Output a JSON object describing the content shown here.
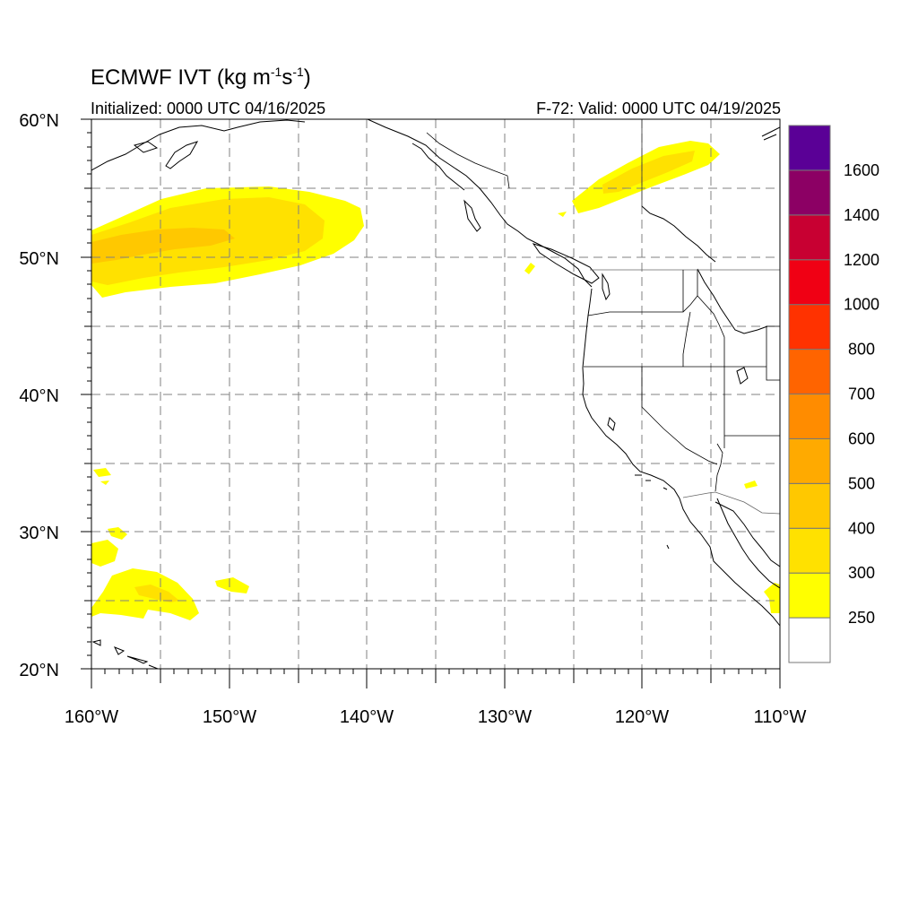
{
  "title": {
    "prefix": "ECMWF IVT (kg m",
    "exp1": "-1",
    "middle": "s",
    "exp2": "-1",
    "suffix": ")"
  },
  "initialized": "Initialized: 0000 UTC 04/16/2025",
  "valid": "F-72: Valid: 0000 UTC 04/19/2025",
  "lat_labels": [
    "60°N",
    "50°N",
    "40°N",
    "30°N",
    "20°N"
  ],
  "lon_labels": [
    "160°W",
    "150°W",
    "140°W",
    "130°W",
    "120°W",
    "110°W"
  ],
  "colorbar": {
    "labels": [
      "1600",
      "1400",
      "1200",
      "1000",
      "800",
      "700",
      "600",
      "500",
      "400",
      "300",
      "250"
    ],
    "colors": [
      "#ffffff",
      "#ffff00",
      "#ffe100",
      "#ffc800",
      "#ffaa00",
      "#ff8c00",
      "#ff6400",
      "#ff3200",
      "#f00014",
      "#c80032",
      "#8c0064",
      "#5a0096"
    ]
  }
}
